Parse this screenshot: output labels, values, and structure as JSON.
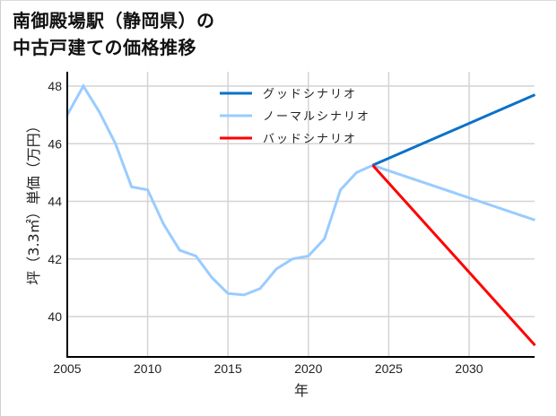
{
  "title": {
    "line1": "南御殿場駅（静岡県）の",
    "line2": "中古戸建ての価格推移"
  },
  "axes": {
    "xlabel": "年",
    "ylabel": "坪（3.3㎡）単価（万円）",
    "xticks": [
      "2005",
      "2010",
      "2015",
      "2020",
      "2025",
      "2030"
    ],
    "yticks": [
      "40",
      "42",
      "44",
      "46",
      "48"
    ]
  },
  "legend": [
    {
      "label": "グッドシナリオ",
      "color": "#0a72c8"
    },
    {
      "label": "ノーマルシナリオ",
      "color": "#99ccff"
    },
    {
      "label": "バッドシナリオ",
      "color": "#ff0000"
    }
  ],
  "chart_data": {
    "type": "line",
    "title": "南御殿場駅（静岡県）の中古戸建ての価格推移",
    "xlabel": "年",
    "ylabel": "坪（3.3㎡）単価（万円）",
    "xlim": [
      2005,
      2034.1
    ],
    "ylim": [
      38.6,
      48.5
    ],
    "grid": true,
    "legend_position": "upper center",
    "x_ticks": [
      2005,
      2010,
      2015,
      2020,
      2025,
      2030
    ],
    "y_ticks": [
      40,
      42,
      44,
      46,
      48
    ],
    "series": [
      {
        "name": "ノーマルシナリオ",
        "color": "#99ccff",
        "x": [
          2005,
          2006,
          2007,
          2008,
          2009,
          2010,
          2011,
          2012,
          2013,
          2014,
          2015,
          2016,
          2017,
          2018,
          2019,
          2020,
          2021,
          2022,
          2023,
          2024,
          2034.1
        ],
        "values": [
          47.0,
          48.0,
          47.1,
          46.0,
          44.5,
          44.4,
          43.2,
          42.3,
          42.1,
          41.35,
          40.8,
          40.75,
          40.97,
          41.65,
          42.0,
          42.1,
          42.7,
          44.4,
          45.0,
          45.25,
          43.35
        ]
      },
      {
        "name": "グッドシナリオ",
        "color": "#0a72c8",
        "x": [
          2024,
          2034.1
        ],
        "values": [
          45.25,
          47.7
        ]
      },
      {
        "name": "バッドシナリオ",
        "color": "#ff0000",
        "x": [
          2024,
          2034.1
        ],
        "values": [
          45.25,
          39.0
        ]
      }
    ]
  }
}
